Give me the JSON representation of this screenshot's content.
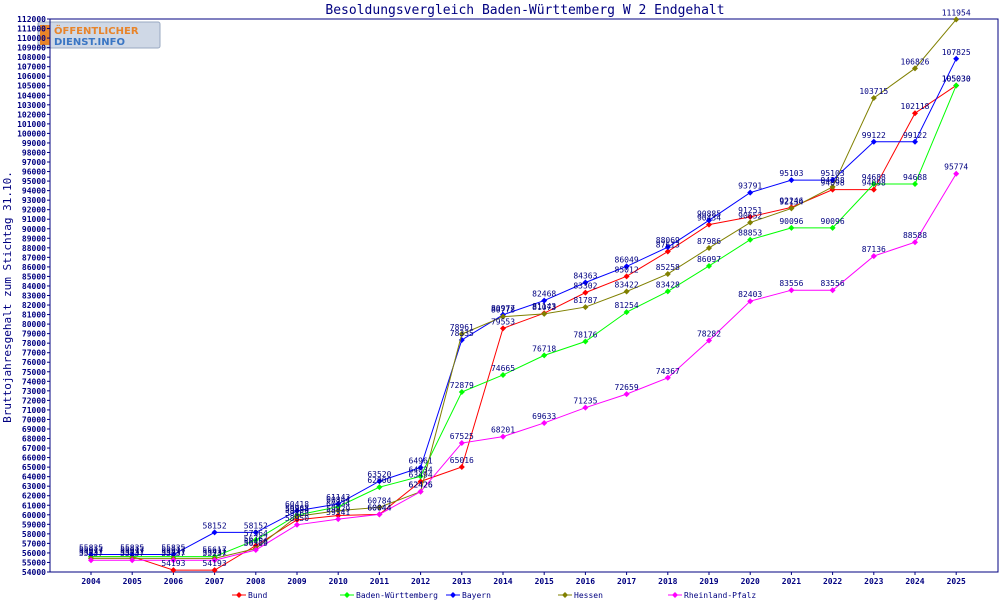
{
  "logo": {
    "line1": "ÖFFENTLICHER",
    "line2": "DIENST.INFO"
  },
  "chart_data": {
    "type": "line",
    "title": "Besoldungsvergleich Baden-Württemberg W 2 Endgehalt",
    "xlabel": "",
    "ylabel": "Bruttojahresgehalt zum Stichtag 31.10.",
    "ylim": [
      54000,
      112000
    ],
    "ytick_step": 1000,
    "grid": false,
    "legend_position": "bottom",
    "categories": [
      "2004",
      "2005",
      "2006",
      "2007",
      "2008",
      "2009",
      "2010",
      "2011",
      "2012",
      "2013",
      "2014",
      "2015",
      "2016",
      "2017",
      "2018",
      "2019",
      "2020",
      "2021",
      "2022",
      "2023",
      "2024",
      "2025"
    ],
    "series": [
      {
        "name": "Bund",
        "color": "#ff0000",
        "values": [
          55617,
          55617,
          54193,
          54193,
          56767,
          59468,
          59929,
          60044,
          63494,
          65016,
          79553,
          81143,
          83302,
          85012,
          87613,
          90434,
          91251,
          92246,
          94098,
          94098,
          102118,
          105030
        ]
      },
      {
        "name": "Baden-Württemberg",
        "color": "#00ff00",
        "values": [
          55617,
          55617,
          55617,
          55617,
          57364,
          59968,
          60844,
          62900,
          64034,
          72879,
          74665,
          76718,
          78176,
          81254,
          83428,
          86097,
          88853,
          90096,
          90096,
          94688,
          94688,
          105030
        ]
      },
      {
        "name": "Bayern",
        "color": "#0000ff",
        "values": [
          55835,
          55835,
          55835,
          58152,
          58152,
          60418,
          61143,
          63520,
          64961,
          78335,
          80977,
          82468,
          84363,
          86049,
          88069,
          90885,
          93791,
          95103,
          95103,
          99122,
          99122,
          107825
        ]
      },
      {
        "name": "Hessen",
        "color": "#808000",
        "values": [
          55431,
          55431,
          55431,
          55431,
          56459,
          59834,
          60434,
          60784,
          62426,
          78961,
          80778,
          81073,
          81787,
          83422,
          85258,
          87986,
          90652,
          92134,
          94388,
          103715,
          106826,
          111954
        ]
      },
      {
        "name": "Rheinland-Pfalz",
        "color": "#ff00ff",
        "values": [
          55237,
          55237,
          55237,
          55237,
          56309,
          58950,
          59541,
          60044,
          62426,
          67525,
          68201,
          69633,
          71235,
          72659,
          74367,
          78282,
          82403,
          83556,
          83556,
          87136,
          88588,
          95774
        ]
      }
    ]
  }
}
